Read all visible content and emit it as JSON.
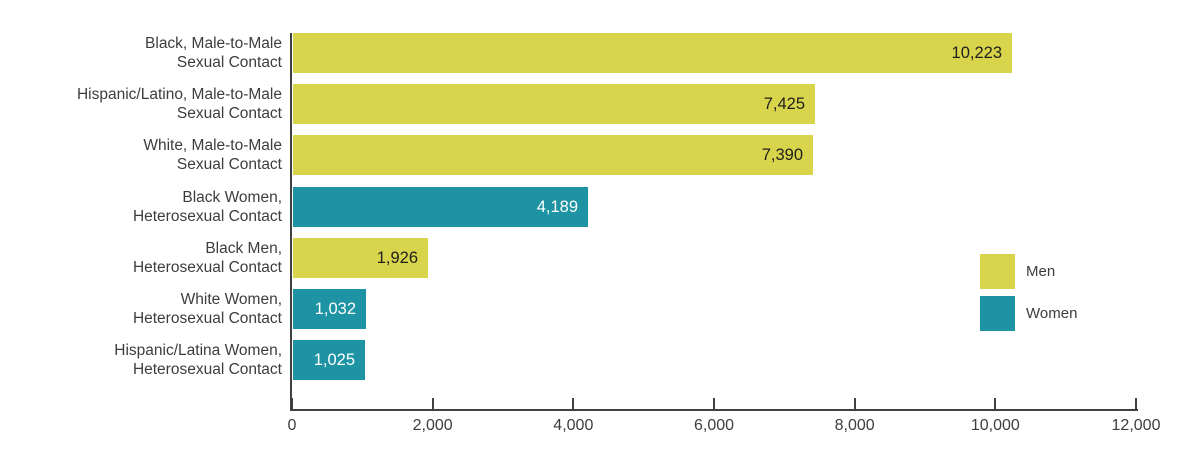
{
  "chart_data": {
    "type": "bar",
    "orientation": "horizontal",
    "title": "",
    "xlabel": "",
    "ylabel": "",
    "grid": false,
    "legend_position": "right",
    "xaxis": {
      "min": 0,
      "max": 12000,
      "tick_interval": 2000,
      "tick_labels": [
        "0",
        "2,000",
        "4,000",
        "6,000",
        "8,000",
        "10,000",
        "12,000"
      ]
    },
    "groups": [
      {
        "name": "Men",
        "color": "#d8d44b",
        "value_text_color": "#1f1f1f"
      },
      {
        "name": "Women",
        "color": "#1e93a3",
        "value_text_color": "#ffffff"
      }
    ],
    "bars": [
      {
        "label_lines": [
          "Black, Male-to-Male",
          "Sexual Contact"
        ],
        "value": 10223,
        "value_label": "10,223",
        "group": "Men"
      },
      {
        "label_lines": [
          "Hispanic/Latino, Male-to-Male",
          "Sexual Contact"
        ],
        "value": 7425,
        "value_label": "7,425",
        "group": "Men"
      },
      {
        "label_lines": [
          "White, Male-to-Male",
          "Sexual Contact"
        ],
        "value": 7390,
        "value_label": "7,390",
        "group": "Men"
      },
      {
        "label_lines": [
          "Black Women,",
          "Heterosexual Contact"
        ],
        "value": 4189,
        "value_label": "4,189",
        "group": "Women"
      },
      {
        "label_lines": [
          "Black Men,",
          "Heterosexual Contact"
        ],
        "value": 1926,
        "value_label": "1,926",
        "group": "Men"
      },
      {
        "label_lines": [
          "White Women,",
          "Heterosexual Contact"
        ],
        "value": 1032,
        "value_label": "1,032",
        "group": "Women"
      },
      {
        "label_lines": [
          "Hispanic/Latina Women,",
          "Heterosexual Contact"
        ],
        "value": 1025,
        "value_label": "1,025",
        "group": "Women"
      }
    ],
    "legend": [
      {
        "label": "Men",
        "group": "Men"
      },
      {
        "label": "Women",
        "group": "Women"
      }
    ],
    "colors": {
      "axis": "#404040",
      "label_text": "#3d3d3d",
      "background": "#ffffff"
    }
  }
}
